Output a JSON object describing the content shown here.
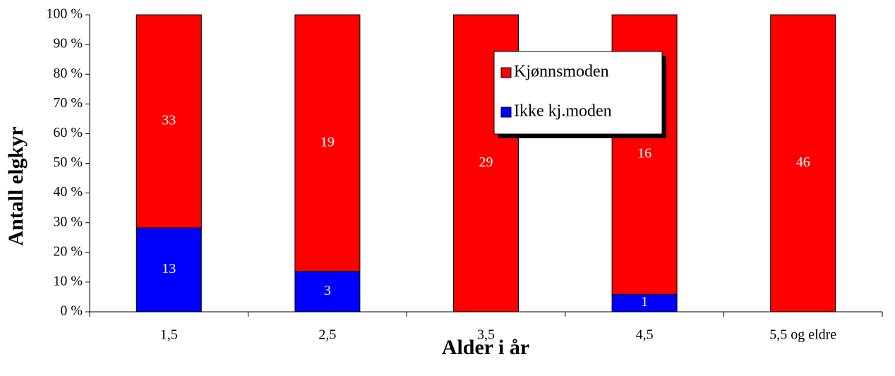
{
  "chart_data": {
    "type": "bar",
    "stack": "percent",
    "x_label": "Alder i år",
    "y_label": "Antall elgkyr",
    "categories": [
      "1,5",
      "2,5",
      "3,5",
      "4,5",
      "5,5 og eldre"
    ],
    "series": [
      {
        "name": "Ikke kj.moden",
        "color": "#0000ff",
        "values": [
          13,
          3,
          0,
          1,
          0
        ]
      },
      {
        "name": "Kjønnsmoden",
        "color": "#ff0000",
        "values": [
          33,
          19,
          29,
          16,
          46
        ]
      }
    ],
    "ylim": [
      0,
      100
    ],
    "yticks": [
      {
        "value": 0,
        "label": "0 %"
      },
      {
        "value": 10,
        "label": "10 %"
      },
      {
        "value": 20,
        "label": "20 %"
      },
      {
        "value": 30,
        "label": "30 %"
      },
      {
        "value": 40,
        "label": "40 %"
      },
      {
        "value": 50,
        "label": "50 %"
      },
      {
        "value": 60,
        "label": "60 %"
      },
      {
        "value": 70,
        "label": "70 %"
      },
      {
        "value": 80,
        "label": "80 %"
      },
      {
        "value": 90,
        "label": "90 %"
      },
      {
        "value": 100,
        "label": "100 %"
      }
    ],
    "grid": false
  }
}
